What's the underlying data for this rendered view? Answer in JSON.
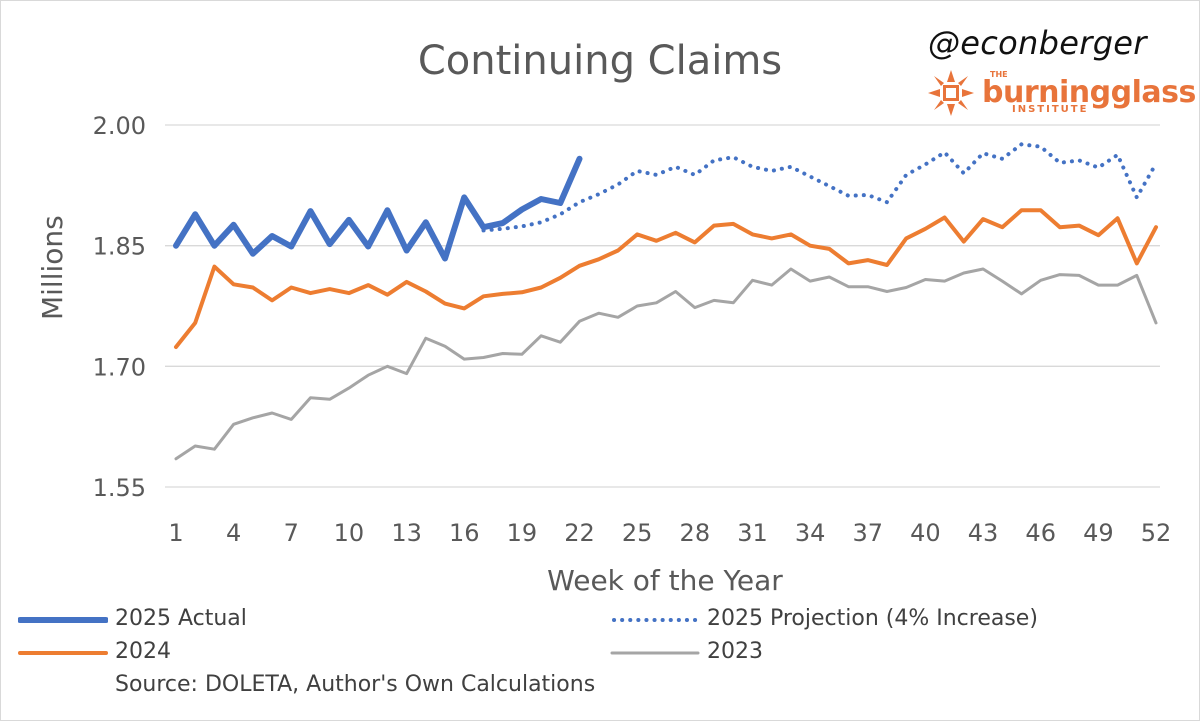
{
  "branding": {
    "handle": "@econberger",
    "logo_the": "THE",
    "logo_name": "burningglass",
    "logo_sub": "INSTITUTE"
  },
  "colors": {
    "actual_2025": "#4472c4",
    "y2024": "#ed7d31",
    "y2023": "#a5a5a5",
    "grid": "#d9d9d9",
    "text": "#595959",
    "logo": "#e8743b"
  },
  "chart_data": {
    "type": "line",
    "title": "Continuing Claims",
    "xlabel": "Week of the Year",
    "ylabel": "Millions",
    "xlim": [
      1,
      52
    ],
    "ylim": [
      1.55,
      2.0
    ],
    "y_ticks": [
      "1.55",
      "1.70",
      "1.85",
      "2.00"
    ],
    "x_ticks": [
      "1",
      "4",
      "7",
      "10",
      "13",
      "16",
      "19",
      "22",
      "25",
      "28",
      "31",
      "34",
      "37",
      "40",
      "43",
      "46",
      "49",
      "52"
    ],
    "source": "Source: DOLETA, Author's Own Calculations",
    "series": [
      {
        "name": "2025 Actual",
        "style": "solid-thick",
        "x": [
          1,
          2,
          3,
          4,
          5,
          6,
          7,
          8,
          9,
          10,
          11,
          12,
          13,
          14,
          15,
          16,
          17,
          18,
          19,
          20,
          21,
          22
        ],
        "values": [
          1.85,
          1.889,
          1.85,
          1.876,
          1.84,
          1.862,
          1.849,
          1.893,
          1.852,
          1.882,
          1.849,
          1.894,
          1.844,
          1.879,
          1.834,
          1.91,
          1.873,
          1.878,
          1.895,
          1.908,
          1.903,
          1.958
        ]
      },
      {
        "name": "2025 Projection (4% Increase)",
        "style": "dotted",
        "x": [
          17,
          18,
          19,
          20,
          21,
          22,
          23,
          24,
          25,
          26,
          27,
          28,
          29,
          30,
          31,
          32,
          33,
          34,
          35,
          36,
          37,
          38,
          39,
          40,
          41,
          42,
          43,
          44,
          45,
          46,
          47,
          48,
          49,
          50,
          51,
          52
        ],
        "values": [
          1.869,
          1.871,
          1.874,
          1.879,
          1.889,
          1.904,
          1.914,
          1.926,
          1.943,
          1.938,
          1.948,
          1.938,
          1.956,
          1.96,
          1.948,
          1.943,
          1.948,
          1.936,
          1.924,
          1.912,
          1.913,
          1.904,
          1.938,
          1.951,
          1.966,
          1.94,
          1.965,
          1.958,
          1.976,
          1.973,
          1.953,
          1.956,
          1.947,
          1.963,
          1.91,
          1.952
        ]
      },
      {
        "name": "2024",
        "style": "solid",
        "x": [
          1,
          2,
          3,
          4,
          5,
          6,
          7,
          8,
          9,
          10,
          11,
          12,
          13,
          14,
          15,
          16,
          17,
          18,
          19,
          20,
          21,
          22,
          23,
          24,
          25,
          26,
          27,
          28,
          29,
          30,
          31,
          32,
          33,
          34,
          35,
          36,
          37,
          38,
          39,
          40,
          41,
          42,
          43,
          44,
          45,
          46,
          47,
          48,
          49,
          50,
          51,
          52
        ],
        "values": [
          1.724,
          1.754,
          1.824,
          1.802,
          1.798,
          1.782,
          1.798,
          1.791,
          1.796,
          1.791,
          1.801,
          1.789,
          1.805,
          1.793,
          1.778,
          1.772,
          1.787,
          1.79,
          1.792,
          1.798,
          1.81,
          1.825,
          1.833,
          1.844,
          1.864,
          1.856,
          1.866,
          1.854,
          1.875,
          1.877,
          1.864,
          1.859,
          1.864,
          1.85,
          1.846,
          1.828,
          1.832,
          1.826,
          1.859,
          1.871,
          1.885,
          1.855,
          1.883,
          1.873,
          1.894,
          1.894,
          1.873,
          1.875,
          1.863,
          1.884,
          1.828,
          1.873
        ]
      },
      {
        "name": "2023",
        "style": "solid-thin",
        "x": [
          1,
          2,
          3,
          4,
          5,
          6,
          7,
          8,
          9,
          10,
          11,
          12,
          13,
          14,
          15,
          16,
          17,
          18,
          19,
          20,
          21,
          22,
          23,
          24,
          25,
          26,
          27,
          28,
          29,
          30,
          31,
          32,
          33,
          34,
          35,
          36,
          37,
          38,
          39,
          40,
          41,
          42,
          43,
          44,
          45,
          46,
          47,
          48,
          49,
          50,
          51,
          52
        ],
        "values": [
          1.585,
          1.601,
          1.597,
          1.628,
          1.636,
          1.642,
          1.634,
          1.661,
          1.659,
          1.673,
          1.689,
          1.7,
          1.691,
          1.735,
          1.725,
          1.709,
          1.711,
          1.716,
          1.715,
          1.738,
          1.73,
          1.756,
          1.766,
          1.761,
          1.775,
          1.779,
          1.793,
          1.773,
          1.782,
          1.779,
          1.807,
          1.801,
          1.821,
          1.806,
          1.811,
          1.799,
          1.799,
          1.793,
          1.798,
          1.808,
          1.806,
          1.816,
          1.821,
          1.806,
          1.79,
          1.807,
          1.814,
          1.813,
          1.801,
          1.801,
          1.813,
          1.754
        ]
      }
    ]
  }
}
